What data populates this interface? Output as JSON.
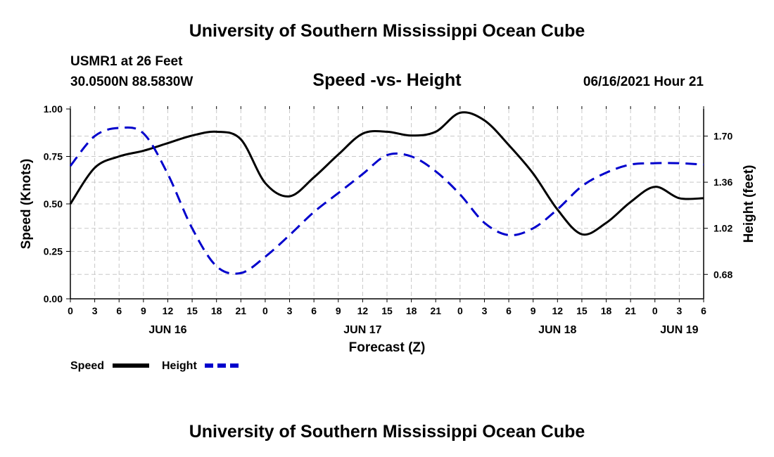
{
  "header": {
    "title": "University of Southern Mississippi Ocean Cube",
    "station": "USMR1 at 26 Feet",
    "coords": "30.0500N  88.5830W",
    "subtitle": "Speed -vs- Height",
    "datetime": "06/16/2021 Hour 21"
  },
  "footer": {
    "title": "University of Southern Mississippi Ocean Cube"
  },
  "chart_data": {
    "type": "line",
    "title": "Speed -vs- Height",
    "xlabel": "Forecast (Z)",
    "ylabel": "Speed (Knots)",
    "y2label": "Height (feet)",
    "xlim": [
      0,
      78
    ],
    "ylim": [
      0,
      1
    ],
    "y2lim": [
      0.5,
      1.9
    ],
    "x_ticks": [
      0,
      3,
      6,
      9,
      12,
      15,
      18,
      21,
      24,
      27,
      30,
      33,
      36,
      39,
      42,
      45,
      48,
      51,
      54,
      57,
      60,
      63,
      66,
      69,
      72,
      75,
      78
    ],
    "x_tick_labels": [
      "0",
      "3",
      "6",
      "9",
      "12",
      "15",
      "18",
      "21",
      "0",
      "3",
      "6",
      "9",
      "12",
      "15",
      "18",
      "21",
      "0",
      "3",
      "6",
      "9",
      "12",
      "15",
      "18",
      "21",
      "0",
      "3",
      "6"
    ],
    "date_labels": [
      {
        "x": 12,
        "label": "JUN 16"
      },
      {
        "x": 36,
        "label": "JUN 17"
      },
      {
        "x": 60,
        "label": "JUN 18"
      },
      {
        "x": 75,
        "label": "JUN 19"
      }
    ],
    "y_ticks": [
      0,
      0.25,
      0.5,
      0.75,
      1.0
    ],
    "y_tick_labels": [
      "0.00",
      "0.25",
      "0.50",
      "0.75",
      "1.00"
    ],
    "y2_ticks": [
      0.68,
      1.02,
      1.36,
      1.7
    ],
    "y2_tick_labels": [
      "0.68",
      "1.02",
      "1.36",
      "1.70"
    ],
    "grid": true,
    "legend_position": "bottom-left",
    "series": [
      {
        "name": "Speed",
        "axis": "left",
        "color": "#000000",
        "dash": "solid",
        "x": [
          0,
          3,
          6,
          9,
          12,
          15,
          18,
          21,
          24,
          27,
          30,
          33,
          36,
          39,
          42,
          45,
          48,
          51,
          54,
          57,
          60,
          63,
          66,
          69,
          72,
          75,
          78
        ],
        "values": [
          0.5,
          0.69,
          0.75,
          0.78,
          0.82,
          0.86,
          0.88,
          0.84,
          0.61,
          0.54,
          0.64,
          0.76,
          0.87,
          0.88,
          0.86,
          0.88,
          0.98,
          0.94,
          0.81,
          0.66,
          0.47,
          0.34,
          0.4,
          0.51,
          0.59,
          0.53,
          0.53
        ],
        "legend_label": "Speed"
      },
      {
        "name": "Height",
        "axis": "right",
        "color": "#0000cc",
        "dash": "dashed",
        "x": [
          0,
          3,
          6,
          9,
          12,
          15,
          18,
          21,
          24,
          27,
          30,
          33,
          36,
          39,
          42,
          45,
          48,
          51,
          54,
          57,
          60,
          63,
          66,
          69,
          72,
          75,
          78
        ],
        "values": [
          1.48,
          1.7,
          1.76,
          1.72,
          1.42,
          1.02,
          0.74,
          0.69,
          0.81,
          0.97,
          1.14,
          1.28,
          1.42,
          1.56,
          1.55,
          1.44,
          1.27,
          1.06,
          0.97,
          1.02,
          1.16,
          1.33,
          1.43,
          1.49,
          1.5,
          1.5,
          1.49
        ],
        "legend_label": "Height"
      }
    ]
  }
}
